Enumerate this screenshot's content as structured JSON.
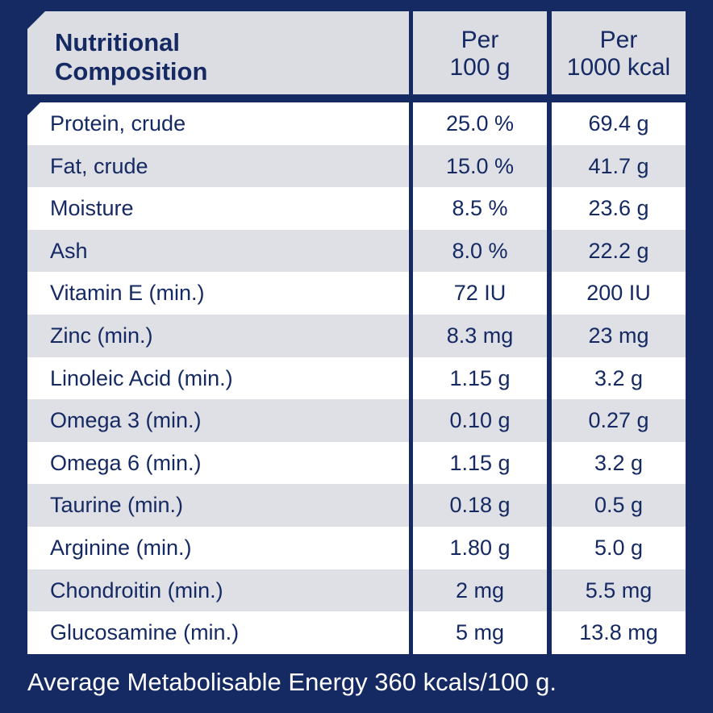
{
  "header": {
    "label_line1": "Nutritional",
    "label_line2": "Composition",
    "col1_line1": "Per",
    "col1_line2": "100 g",
    "col2_line1": "Per",
    "col2_line2": "1000 kcal"
  },
  "rows": [
    {
      "name": "Protein, crude",
      "per100g": "25.0 %",
      "per1000kcal": "69.4 g"
    },
    {
      "name": "Fat, crude",
      "per100g": "15.0 %",
      "per1000kcal": "41.7 g"
    },
    {
      "name": "Moisture",
      "per100g": "8.5 %",
      "per1000kcal": "23.6 g"
    },
    {
      "name": "Ash",
      "per100g": "8.0 %",
      "per1000kcal": "22.2 g"
    },
    {
      "name": "Vitamin E (min.)",
      "per100g": "72 IU",
      "per1000kcal": "200 IU"
    },
    {
      "name": "Zinc (min.)",
      "per100g": "8.3 mg",
      "per1000kcal": "23 mg"
    },
    {
      "name": "Linoleic Acid (min.)",
      "per100g": "1.15 g",
      "per1000kcal": "3.2 g"
    },
    {
      "name": "Omega 3 (min.)",
      "per100g": "0.10 g",
      "per1000kcal": "0.27 g"
    },
    {
      "name": "Omega 6 (min.)",
      "per100g": "1.15 g",
      "per1000kcal": "3.2 g"
    },
    {
      "name": "Taurine (min.)",
      "per100g": "0.18 g",
      "per1000kcal": "0.5 g"
    },
    {
      "name": "Arginine (min.)",
      "per100g": "1.80 g",
      "per1000kcal": "5.0 g"
    },
    {
      "name": "Chondroitin (min.)",
      "per100g": "2 mg",
      "per1000kcal": "5.5 mg"
    },
    {
      "name": "Glucosamine (min.)",
      "per100g": "5 mg",
      "per1000kcal": "13.8 mg"
    }
  ],
  "footer": "Average Metabolisable Energy 360 kcals/100 g.",
  "colors": {
    "background": "#152963",
    "text": "#152963",
    "header_bg": "#dcdde2",
    "row_white": "#ffffff",
    "row_grey": "#dfe0e5"
  }
}
